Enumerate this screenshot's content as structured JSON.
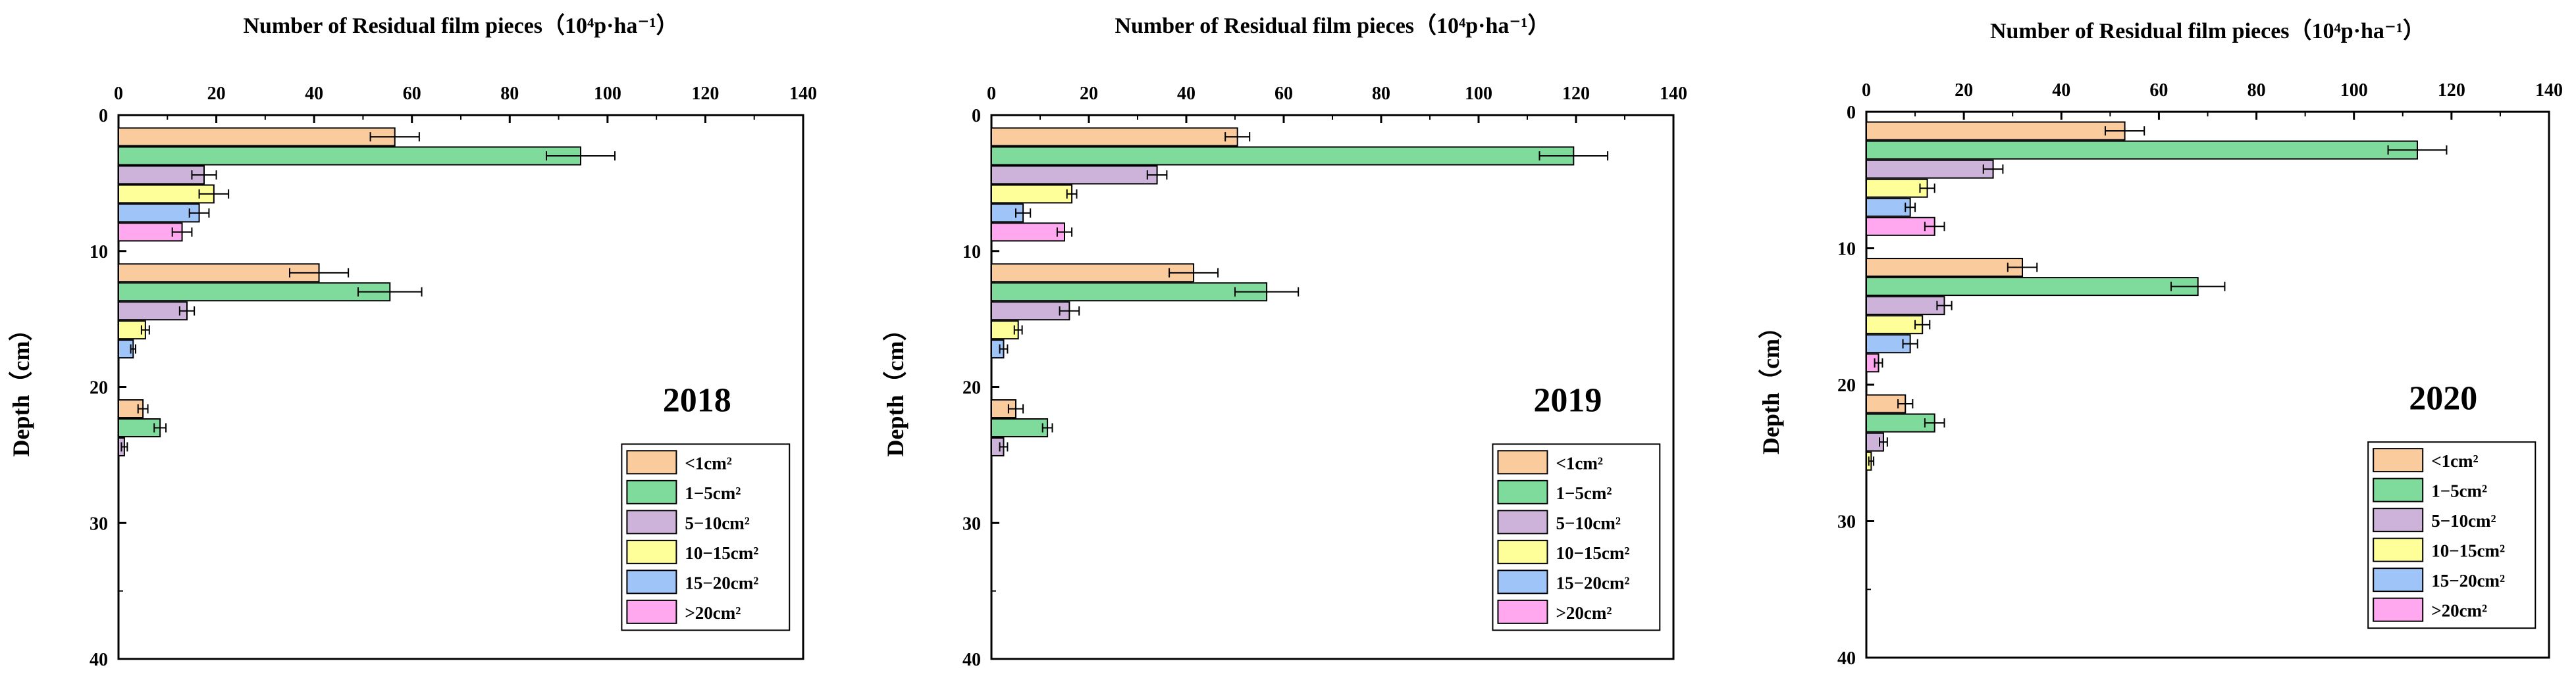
{
  "chart_data": [
    {
      "type": "bar",
      "orientation": "horizontal",
      "title": "Number of Residual film pieces（10⁴p·ha⁻¹）",
      "year": "2018",
      "xlabel": "Number of Residual film pieces（10⁴p·ha⁻¹）",
      "ylabel": "Depth（cm）",
      "xlim": [
        0,
        140
      ],
      "ylim": [
        0,
        40
      ],
      "xticks": [
        "0",
        "20",
        "40",
        "60",
        "80",
        "100",
        "120",
        "140"
      ],
      "yticks": [
        "0",
        "10",
        "20",
        "30",
        "40"
      ],
      "legend_position": "bottom-right",
      "series": [
        {
          "name": "<1cm²",
          "color": "#FACB9C",
          "bars": [
            {
              "depth": 1.6,
              "value": 56.5,
              "err": 5.0
            },
            {
              "depth": 11.6,
              "value": 41.0,
              "err": 6.0
            },
            {
              "depth": 21.6,
              "value": 5.0,
              "err": 1.0
            }
          ]
        },
        {
          "name": "1−5cm²",
          "color": "#7FDB9B",
          "bars": [
            {
              "depth": 3.0,
              "value": 94.5,
              "err": 7.0
            },
            {
              "depth": 13.0,
              "value": 55.5,
              "err": 6.5
            },
            {
              "depth": 23.0,
              "value": 8.5,
              "err": 1.2
            }
          ]
        },
        {
          "name": "5−10cm²",
          "color": "#CDB3DA",
          "bars": [
            {
              "depth": 4.4,
              "value": 17.5,
              "err": 2.5
            },
            {
              "depth": 14.4,
              "value": 14.0,
              "err": 1.5
            },
            {
              "depth": 24.4,
              "value": 1.2,
              "err": 0.6
            }
          ]
        },
        {
          "name": "10−15cm²",
          "color": "#FFFF99",
          "bars": [
            {
              "depth": 5.8,
              "value": 19.5,
              "err": 3.0
            },
            {
              "depth": 15.8,
              "value": 5.5,
              "err": 0.8
            }
          ]
        },
        {
          "name": "15−20cm²",
          "color": "#9FC5F8",
          "bars": [
            {
              "depth": 7.2,
              "value": 16.5,
              "err": 2.0
            },
            {
              "depth": 17.2,
              "value": 3.0,
              "err": 0.5
            }
          ]
        },
        {
          "name": ">20cm²",
          "color": "#FFA8F0",
          "bars": [
            {
              "depth": 8.6,
              "value": 13.0,
              "err": 2.0
            }
          ]
        }
      ]
    },
    {
      "type": "bar",
      "orientation": "horizontal",
      "title": "Number of Residual film pieces（10⁴p·ha⁻¹）",
      "year": "2019",
      "xlabel": "Number of Residual film pieces（10⁴p·ha⁻¹）",
      "ylabel": "Depth（cm）",
      "xlim": [
        0,
        140
      ],
      "ylim": [
        0,
        40
      ],
      "xticks": [
        "0",
        "20",
        "40",
        "60",
        "80",
        "100",
        "120",
        "140"
      ],
      "yticks": [
        "0",
        "10",
        "20",
        "30",
        "40"
      ],
      "legend_position": "bottom-right",
      "series": [
        {
          "name": "<1cm²",
          "color": "#FACB9C",
          "bars": [
            {
              "depth": 1.6,
              "value": 50.5,
              "err": 2.5
            },
            {
              "depth": 11.6,
              "value": 41.5,
              "err": 5.0
            },
            {
              "depth": 21.6,
              "value": 5.0,
              "err": 1.5
            }
          ]
        },
        {
          "name": "1−5cm²",
          "color": "#7FDB9B",
          "bars": [
            {
              "depth": 3.0,
              "value": 119.5,
              "err": 7.0
            },
            {
              "depth": 13.0,
              "value": 56.5,
              "err": 6.5
            },
            {
              "depth": 23.0,
              "value": 11.5,
              "err": 1.0
            }
          ]
        },
        {
          "name": "5−10cm²",
          "color": "#CDB3DA",
          "bars": [
            {
              "depth": 4.4,
              "value": 34.0,
              "err": 2.0
            },
            {
              "depth": 14.4,
              "value": 16.0,
              "err": 2.0
            },
            {
              "depth": 24.4,
              "value": 2.5,
              "err": 0.8
            }
          ]
        },
        {
          "name": "10−15cm²",
          "color": "#FFFF99",
          "bars": [
            {
              "depth": 5.8,
              "value": 16.5,
              "err": 1.0
            },
            {
              "depth": 15.8,
              "value": 5.5,
              "err": 0.8
            }
          ]
        },
        {
          "name": "15−20cm²",
          "color": "#9FC5F8",
          "bars": [
            {
              "depth": 7.2,
              "value": 6.5,
              "err": 1.5
            },
            {
              "depth": 17.2,
              "value": 2.5,
              "err": 0.8
            }
          ]
        },
        {
          "name": ">20cm²",
          "color": "#FFA8F0",
          "bars": [
            {
              "depth": 8.6,
              "value": 15.0,
              "err": 1.5
            }
          ]
        }
      ]
    },
    {
      "type": "bar",
      "orientation": "horizontal",
      "title": "Number of Residual film pieces（10⁴p·ha⁻¹）",
      "year": "2020",
      "xlabel": "Number of Residual film pieces（10⁴p·ha⁻¹）",
      "ylabel": "Depth（cm）",
      "xlim": [
        0,
        140
      ],
      "ylim": [
        0,
        40
      ],
      "xticks": [
        "0",
        "20",
        "40",
        "60",
        "80",
        "100",
        "120",
        "140"
      ],
      "yticks": [
        "0",
        "10",
        "20",
        "30",
        "40"
      ],
      "legend_position": "bottom-right",
      "series": [
        {
          "name": "<1cm²",
          "color": "#FACB9C",
          "bars": [
            {
              "depth": 1.4,
              "value": 53.0,
              "err": 4.0
            },
            {
              "depth": 11.4,
              "value": 32.0,
              "err": 3.0
            },
            {
              "depth": 21.4,
              "value": 8.0,
              "err": 1.5
            }
          ]
        },
        {
          "name": "1−5cm²",
          "color": "#7FDB9B",
          "bars": [
            {
              "depth": 2.8,
              "value": 113.0,
              "err": 6.0
            },
            {
              "depth": 12.8,
              "value": 68.0,
              "err": 5.5
            },
            {
              "depth": 22.8,
              "value": 14.0,
              "err": 2.0
            }
          ]
        },
        {
          "name": "5−10cm²",
          "color": "#CDB3DA",
          "bars": [
            {
              "depth": 4.2,
              "value": 26.0,
              "err": 2.0
            },
            {
              "depth": 14.2,
              "value": 16.0,
              "err": 1.5
            },
            {
              "depth": 24.2,
              "value": 3.5,
              "err": 0.8
            }
          ]
        },
        {
          "name": "10−15cm²",
          "color": "#FFFF99",
          "bars": [
            {
              "depth": 5.6,
              "value": 12.5,
              "err": 1.5
            },
            {
              "depth": 15.6,
              "value": 11.5,
              "err": 1.5
            },
            {
              "depth": 25.6,
              "value": 1.0,
              "err": 0.5
            }
          ]
        },
        {
          "name": "15−20cm²",
          "color": "#9FC5F8",
          "bars": [
            {
              "depth": 7.0,
              "value": 9.0,
              "err": 1.0
            },
            {
              "depth": 17.0,
              "value": 9.0,
              "err": 1.5
            }
          ]
        },
        {
          "name": ">20cm²",
          "color": "#FFA8F0",
          "bars": [
            {
              "depth": 8.4,
              "value": 14.0,
              "err": 2.0
            },
            {
              "depth": 18.4,
              "value": 2.5,
              "err": 0.8
            }
          ]
        }
      ]
    }
  ]
}
